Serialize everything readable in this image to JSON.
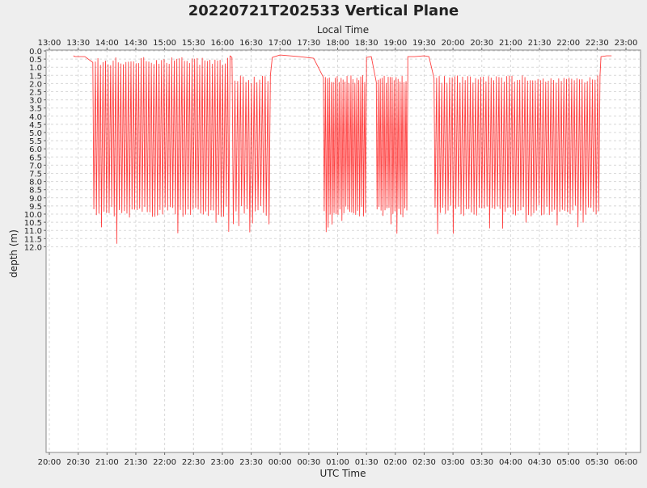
{
  "chart_data": {
    "type": "line",
    "title": "20220721T202533 Vertical Plane",
    "top_axis_label": "Local Time",
    "xlabel": "UTC Time",
    "ylabel": "depth (m)",
    "y_reversed": true,
    "ylim": [
      0.0,
      12.2
    ],
    "xlim_utc": [
      "20:00",
      "06:10"
    ],
    "grid": true,
    "colors": {
      "series": "#ff0000",
      "grid": "#d8d8d8",
      "plot_bg": "#ffffff",
      "page_bg": "#eeeeee"
    },
    "x_ticks_utc": [
      "20:00",
      "20:30",
      "21:00",
      "21:30",
      "22:00",
      "22:30",
      "23:00",
      "23:30",
      "00:00",
      "00:30",
      "01:00",
      "01:30",
      "02:00",
      "02:30",
      "03:00",
      "03:30",
      "04:00",
      "04:30",
      "05:00",
      "05:30",
      "06:00"
    ],
    "x_ticks_local": [
      "13:00",
      "13:30",
      "14:00",
      "14:30",
      "15:00",
      "15:30",
      "16:00",
      "16:30",
      "17:00",
      "17:30",
      "18:00",
      "18:30",
      "19:00",
      "19:30",
      "20:00",
      "20:30",
      "21:00",
      "21:30",
      "22:00",
      "22:30",
      "23:00"
    ],
    "y_ticks": [
      "0.0",
      "0.5",
      "1.0",
      "1.5",
      "2.0",
      "2.5",
      "3.0",
      "3.5",
      "4.0",
      "4.5",
      "5.0",
      "5.5",
      "6.0",
      "6.5",
      "7.0",
      "7.5",
      "8.0",
      "8.5",
      "9.0",
      "9.5",
      "10.0",
      "10.5",
      "11.0",
      "11.5",
      "12.0"
    ],
    "series": [
      {
        "segments": [
          {
            "type": "surface",
            "utc": [
              "20:25",
              "20:27",
              "20:37"
            ],
            "depth": [
              0.3,
              0.35,
              0.35
            ]
          },
          {
            "type": "dives",
            "utc_start": "20:45",
            "utc_end": "23:08",
            "dives": 54,
            "shallow_depth": 0.4,
            "deep_depth": 9.9,
            "deepest": 11.8,
            "deepest_utc": "21:10"
          },
          {
            "type": "surface",
            "utc": [
              "23:08",
              "23:10"
            ],
            "depth": [
              0.3,
              0.4
            ]
          },
          {
            "type": "dives",
            "utc_start": "23:10",
            "utc_end": "23:50",
            "dives": 14,
            "shallow_depth": 1.5,
            "deep_depth": 9.8,
            "deepest": 11.1
          },
          {
            "type": "surface",
            "utc": [
              "23:52",
              "24:00",
              "24:20",
              "24:35"
            ],
            "depth": [
              0.4,
              0.25,
              0.35,
              0.45
            ]
          },
          {
            "type": "dives",
            "utc_start": "24:45",
            "utc_end": "25:30",
            "dives": 22,
            "shallow_depth": 1.5,
            "deep_depth": 9.9,
            "deepest": 10.4
          },
          {
            "type": "surface",
            "utc": [
              "25:30",
              "25:35"
            ],
            "depth": [
              0.4,
              0.35
            ]
          },
          {
            "type": "dives",
            "utc_start": "25:40",
            "utc_end": "26:13",
            "dives": 16,
            "shallow_depth": 1.5,
            "deep_depth": 9.9,
            "deepest": 10.6
          },
          {
            "type": "surface",
            "utc": [
              "26:13",
              "26:20",
              "26:30",
              "26:35"
            ],
            "depth": [
              0.35,
              0.35,
              0.3,
              0.35
            ]
          },
          {
            "type": "dives",
            "utc_start": "26:40",
            "utc_end": "29:33",
            "dives": 64,
            "shallow_depth": 1.5,
            "deep_depth": 9.8,
            "deepest": 11.2,
            "deepest_utc": "26:42"
          },
          {
            "type": "surface",
            "utc": [
              "29:34",
              "29:40",
              "29:45"
            ],
            "depth": [
              0.35,
              0.3,
              0.3
            ]
          }
        ]
      }
    ]
  }
}
